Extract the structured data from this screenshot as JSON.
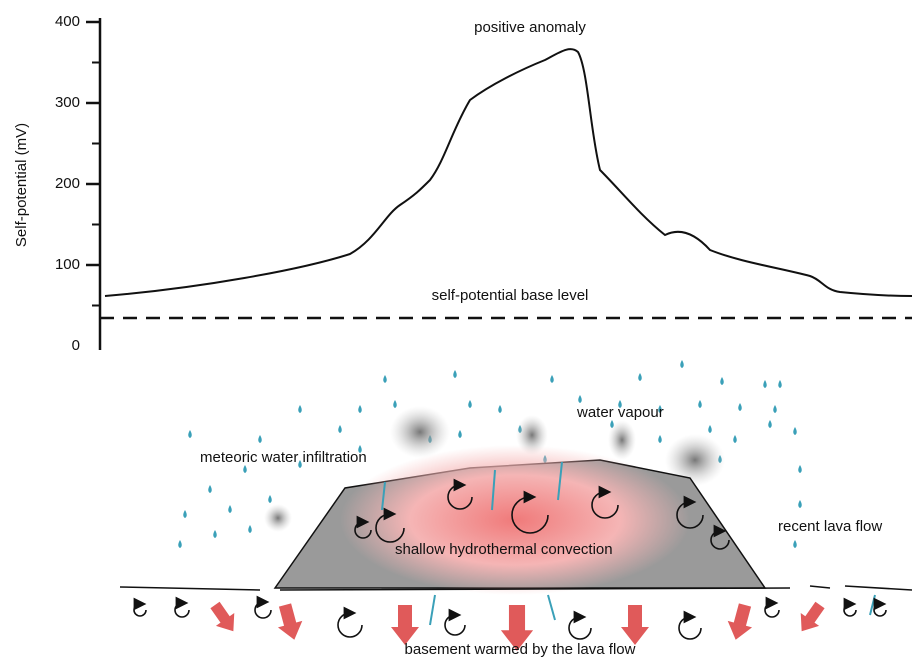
{
  "profile": {
    "y_label": "Self-potential (mV)",
    "ylim": [
      0,
      400
    ],
    "yticks": [
      0,
      100,
      200,
      300,
      400
    ],
    "peak_label": "positive anomaly",
    "base_label": "self-potential base level"
  },
  "section": {
    "rain_label": "meteoric water infiltration",
    "vapour_label": "water vapour",
    "lava_label": "recent lava flow",
    "convection_label": "shallow hydrothermal convection",
    "basement_label": "basement warmed by the lava flow"
  }
}
